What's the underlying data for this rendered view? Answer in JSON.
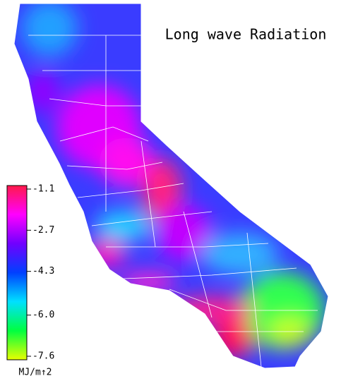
{
  "title": "Long wave Radiation",
  "colorbar": {
    "lim": [
      -7.6,
      -1.1
    ],
    "ticks": [
      -1.1,
      -2.7,
      -4.3,
      {
        "value": -6.0,
        "label": "-6.0"
      },
      -7.6
    ],
    "colors": [
      "#ff1a4a",
      "#ff00ff",
      "#7000ff",
      "#0040ff",
      "#00e0ff",
      "#00ff40",
      "#e8ff00"
    ],
    "unit": "MJ/m↑2"
  }
}
